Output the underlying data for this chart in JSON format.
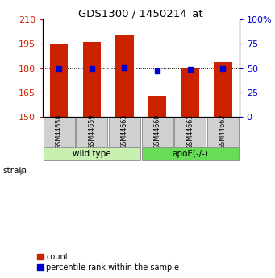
{
  "title": "GDS1300 / 1450214_at",
  "samples": [
    "GSM44658",
    "GSM44659",
    "GSM44663",
    "GSM44660",
    "GSM44661",
    "GSM44662"
  ],
  "counts": [
    195,
    196,
    200,
    163,
    180,
    184
  ],
  "percentiles": [
    50,
    50,
    51,
    47,
    49,
    50
  ],
  "ylim_left": [
    150,
    210
  ],
  "ylim_right": [
    0,
    100
  ],
  "yticks_left": [
    150,
    165,
    180,
    195,
    210
  ],
  "yticks_right": [
    0,
    25,
    50,
    75,
    100
  ],
  "ytick_labels_right": [
    "0",
    "25",
    "50",
    "75",
    "100%"
  ],
  "bar_color": "#cc2200",
  "dot_color": "#0000cc",
  "bar_width": 0.55,
  "group_info": [
    {
      "label": "wild type",
      "indices": [
        0,
        1,
        2
      ],
      "color": "#c8f0b0"
    },
    {
      "label": "apoE(-/-)",
      "indices": [
        3,
        4,
        5
      ],
      "color": "#66dd55"
    }
  ],
  "tick_color_left": "#cc2200",
  "tick_color_right": "#0000cc",
  "legend_count_label": "count",
  "legend_pct_label": "percentile rank within the sample",
  "label_box_color": "#d0d0d0",
  "label_box_edge": "#888888",
  "group_box_edge": "#888888"
}
